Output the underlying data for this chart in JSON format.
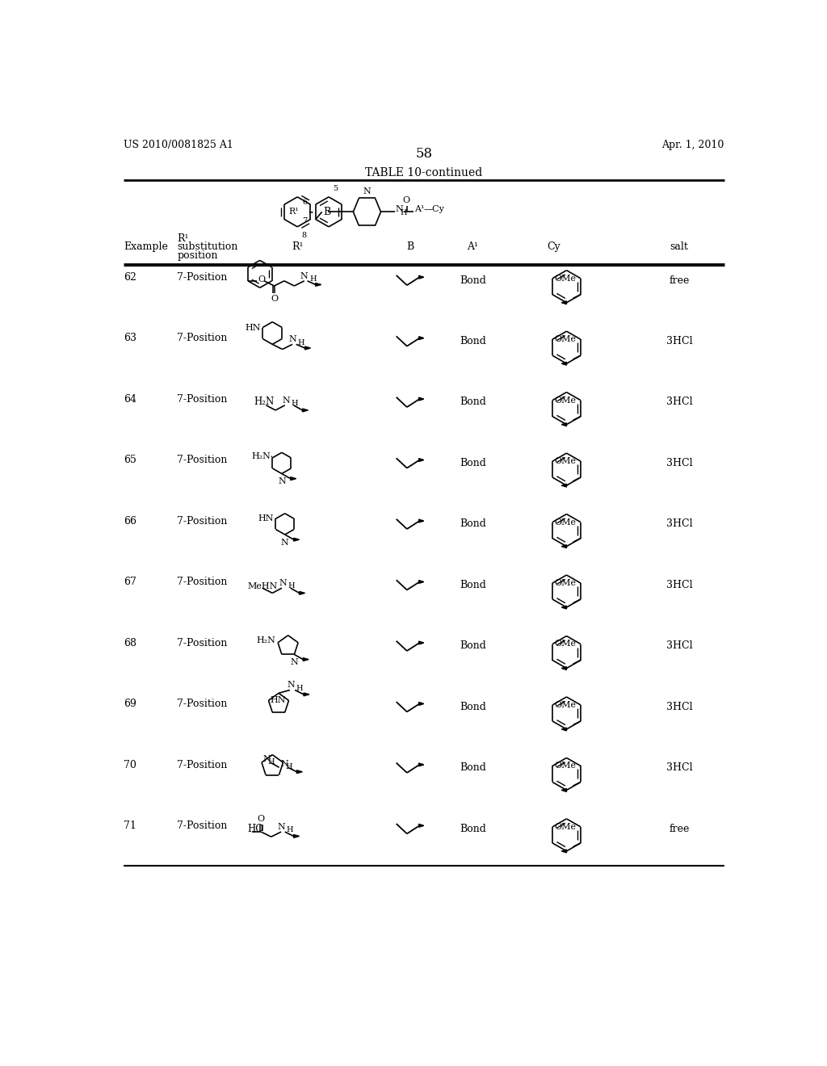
{
  "background_color": "#ffffff",
  "page_header_left": "US 2010/0081825 A1",
  "page_header_right": "Apr. 1, 2010",
  "page_number": "58",
  "table_title": "TABLE 10-continued",
  "font_color": "#000000",
  "rows": [
    {
      "example": "62",
      "position": "7-Position",
      "A1": "Bond",
      "salt": "free"
    },
    {
      "example": "63",
      "position": "7-Position",
      "A1": "Bond",
      "salt": "3HCl"
    },
    {
      "example": "64",
      "position": "7-Position",
      "A1": "Bond",
      "salt": "3HCl"
    },
    {
      "example": "65",
      "position": "7-Position",
      "A1": "Bond",
      "salt": "3HCl"
    },
    {
      "example": "66",
      "position": "7-Position",
      "A1": "Bond",
      "salt": "3HCl"
    },
    {
      "example": "67",
      "position": "7-Position",
      "A1": "Bond",
      "salt": "3HCl"
    },
    {
      "example": "68",
      "position": "7-Position",
      "A1": "Bond",
      "salt": "3HCl"
    },
    {
      "example": "69",
      "position": "7-Position",
      "A1": "Bond",
      "salt": "3HCl"
    },
    {
      "example": "70",
      "position": "7-Position",
      "A1": "Bond",
      "salt": "3HCl"
    },
    {
      "example": "71",
      "position": "7-Position",
      "A1": "Bond",
      "salt": "free"
    }
  ]
}
